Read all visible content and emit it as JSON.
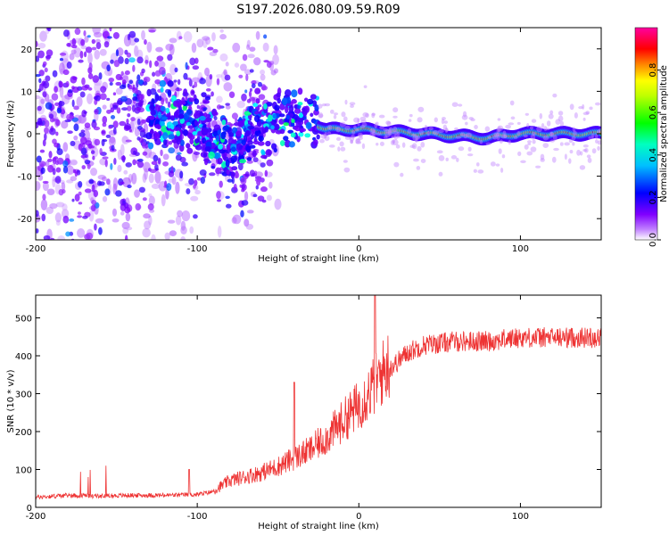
{
  "title": "S197.2026.080.09.59.R09",
  "chart_data": [
    {
      "type": "heatmap",
      "title": "S197.2026.080.09.59.R09",
      "xlabel": "Height of straight line (km)",
      "ylabel": "Frequency (Hz)",
      "xlim": [
        -200,
        150
      ],
      "ylim": [
        -25,
        25
      ],
      "x_ticks": [
        -200,
        -100,
        0,
        100
      ],
      "y_ticks": [
        -20,
        -10,
        0,
        10,
        20
      ],
      "colorbar": {
        "label": "Normalized spectral amplitude",
        "range": [
          0,
          1
        ],
        "ticks": [
          "0.0",
          "0.2",
          "0.4",
          "0.6",
          "0.8"
        ],
        "colors": [
          "#ffffff",
          "#8000ff",
          "#0000ff",
          "#00ffff",
          "#00ff00",
          "#ffff00",
          "#ff8000",
          "#ff0000",
          "#ff00ff"
        ]
      },
      "description_of_signal": "Broad noisy scatter below about -60 km; narrow line near 0 Hz above about -25 km",
      "line_center_hz": [
        {
          "x": -125,
          "y": 4
        },
        {
          "x": -100,
          "y": 2
        },
        {
          "x": -80,
          "y": -3
        },
        {
          "x": -60,
          "y": 2
        },
        {
          "x": -45,
          "y": 4
        },
        {
          "x": -30,
          "y": 3
        },
        {
          "x": -20,
          "y": 1
        },
        {
          "x": 0,
          "y": 1
        },
        {
          "x": 40,
          "y": 0
        },
        {
          "x": 80,
          "y": -1
        },
        {
          "x": 100,
          "y": 0
        },
        {
          "x": 150,
          "y": 0
        }
      ]
    },
    {
      "type": "line",
      "xlabel": "Height of straight line (km)",
      "ylabel": "SNR (10 * v/v)",
      "xlim": [
        -200,
        150
      ],
      "ylim": [
        0,
        560
      ],
      "x_ticks": [
        -200,
        -100,
        0,
        100
      ],
      "y_ticks": [
        0,
        100,
        200,
        300,
        400,
        500
      ],
      "color": "#ee3333",
      "series": [
        {
          "name": "SNR",
          "x": [
            -200,
            -180,
            -160,
            -140,
            -120,
            -100,
            -90,
            -80,
            -70,
            -60,
            -50,
            -40,
            -30,
            -20,
            -10,
            0,
            10,
            20,
            30,
            40,
            60,
            80,
            100,
            120,
            150
          ],
          "values": [
            25,
            30,
            28,
            30,
            30,
            32,
            40,
            65,
            75,
            85,
            100,
            120,
            140,
            170,
            210,
            250,
            300,
            360,
            400,
            420,
            430,
            430,
            440,
            440,
            440
          ]
        }
      ],
      "spikes": [
        {
          "x": 10,
          "y": 560
        },
        {
          "x": -40,
          "y": 330
        },
        {
          "x": -105,
          "y": 100
        }
      ]
    }
  ]
}
